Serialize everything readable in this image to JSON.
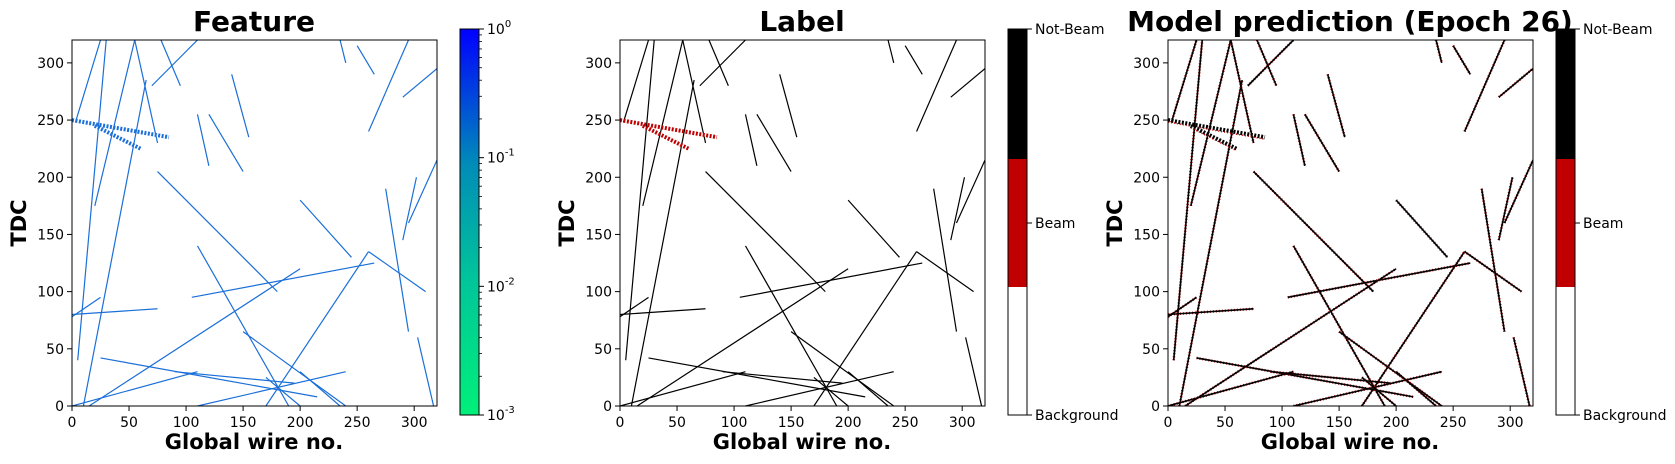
{
  "colors": {
    "feature_low": "#00f07a",
    "feature_high": "#0000ff",
    "track_feature": "#1a6fd8",
    "beam": "#c00000",
    "not_beam": "#000000",
    "background": "#ffffff"
  },
  "chart_data": [
    {
      "type": "heatmap",
      "title": "Feature",
      "xlabel": "Global wire no.",
      "ylabel": "TDC",
      "xlim": [
        0,
        320
      ],
      "ylim": [
        0,
        320
      ],
      "xticks": [
        "0",
        "50",
        "100",
        "150",
        "200",
        "250",
        "300"
      ],
      "yticks": [
        "0",
        "50",
        "100",
        "150",
        "200",
        "250",
        "300"
      ],
      "colorbar": {
        "scale": "log",
        "range": [
          0.001,
          1
        ],
        "ticks": [
          "10^-3",
          "10^-2",
          "10^-1",
          "10^0"
        ]
      }
    },
    {
      "type": "heatmap",
      "title": "Label",
      "xlabel": "Global wire no.",
      "ylabel": "TDC",
      "xlim": [
        0,
        320
      ],
      "ylim": [
        0,
        320
      ],
      "xticks": [
        "0",
        "50",
        "100",
        "150",
        "200",
        "250",
        "300"
      ],
      "yticks": [
        "0",
        "50",
        "100",
        "150",
        "200",
        "250",
        "300"
      ],
      "colorbar": {
        "scale": "categorical",
        "ticks": [
          "Background",
          "Beam",
          "Not-Beam"
        ]
      }
    },
    {
      "type": "heatmap",
      "title": "Model prediction (Epoch 26)",
      "xlabel": "Global wire no.",
      "ylabel": "TDC",
      "xlim": [
        0,
        320
      ],
      "ylim": [
        0,
        320
      ],
      "xticks": [
        "0",
        "50",
        "100",
        "150",
        "200",
        "250",
        "300"
      ],
      "yticks": [
        "0",
        "50",
        "100",
        "150",
        "200",
        "250",
        "300"
      ],
      "colorbar": {
        "scale": "categorical",
        "ticks": [
          "Background",
          "Beam",
          "Not-Beam"
        ]
      }
    }
  ],
  "tracks": [
    [
      [
        3,
        248
      ],
      [
        25,
        320
      ]
    ],
    [
      [
        5,
        40
      ],
      [
        30,
        320
      ]
    ],
    [
      [
        20,
        175
      ],
      [
        55,
        320
      ]
    ],
    [
      [
        10,
        0
      ],
      [
        65,
        285
      ]
    ],
    [
      [
        55,
        320
      ],
      [
        75,
        230
      ]
    ],
    [
      [
        70,
        280
      ],
      [
        110,
        320
      ]
    ],
    [
      [
        78,
        320
      ],
      [
        95,
        280
      ]
    ],
    [
      [
        110,
        255
      ],
      [
        120,
        210
      ]
    ],
    [
      [
        140,
        290
      ],
      [
        155,
        235
      ]
    ],
    [
      [
        120,
        255
      ],
      [
        150,
        205
      ]
    ],
    [
      [
        75,
        205
      ],
      [
        180,
        100
      ]
    ],
    [
      [
        0,
        80
      ],
      [
        75,
        85
      ]
    ],
    [
      [
        0,
        78
      ],
      [
        25,
        95
      ]
    ],
    [
      [
        105,
        95
      ],
      [
        265,
        125
      ]
    ],
    [
      [
        170,
        0
      ],
      [
        260,
        135
      ]
    ],
    [
      [
        110,
        0
      ],
      [
        240,
        30
      ]
    ],
    [
      [
        25,
        42
      ],
      [
        215,
        8
      ]
    ],
    [
      [
        0,
        0
      ],
      [
        110,
        30
      ]
    ],
    [
      [
        15,
        0
      ],
      [
        200,
        120
      ]
    ],
    [
      [
        110,
        140
      ],
      [
        190,
        0
      ]
    ],
    [
      [
        150,
        65
      ],
      [
        240,
        0
      ]
    ],
    [
      [
        90,
        30
      ],
      [
        195,
        20
      ]
    ],
    [
      [
        200,
        180
      ],
      [
        245,
        130
      ]
    ],
    [
      [
        260,
        135
      ],
      [
        310,
        100
      ]
    ],
    [
      [
        260,
        240
      ],
      [
        295,
        320
      ]
    ],
    [
      [
        275,
        190
      ],
      [
        295,
        65
      ]
    ],
    [
      [
        303,
        60
      ],
      [
        317,
        0
      ]
    ],
    [
      [
        290,
        270
      ],
      [
        320,
        295
      ]
    ],
    [
      [
        295,
        160
      ],
      [
        320,
        215
      ]
    ],
    [
      [
        200,
        30
      ],
      [
        235,
        0
      ]
    ],
    [
      [
        290,
        145
      ],
      [
        302,
        200
      ]
    ],
    [
      [
        250,
        315
      ],
      [
        265,
        290
      ]
    ],
    [
      [
        235,
        320
      ],
      [
        240,
        300
      ]
    ],
    [
      [
        170,
        25
      ],
      [
        200,
        0
      ]
    ]
  ],
  "beam_tracks": [
    [
      [
        0,
        250
      ],
      [
        85,
        235
      ]
    ],
    [
      [
        20,
        245
      ],
      [
        60,
        225
      ]
    ]
  ]
}
